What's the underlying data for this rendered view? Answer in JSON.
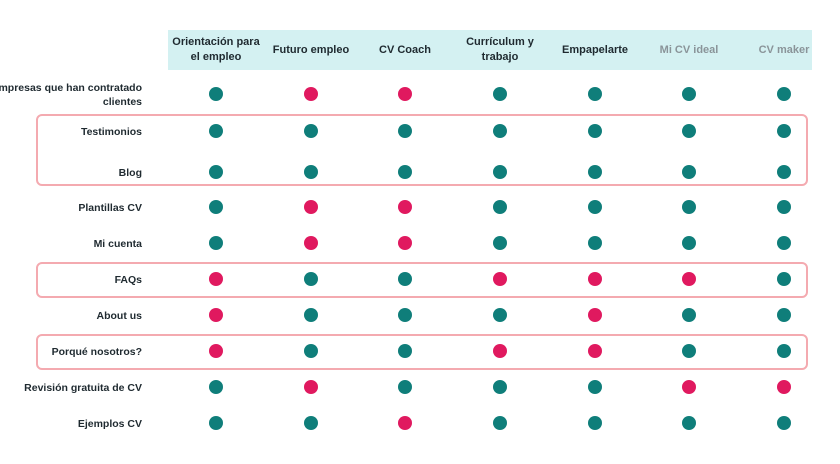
{
  "colors": {
    "yes": "#0f7e7a",
    "no": "#e0195f",
    "header_bg": "#d4f1f2",
    "highlight_border": "#f4aab0"
  },
  "columns": [
    "Orientación para el empleo",
    "Futuro empleo",
    "CV Coach",
    "Currículum y trabajo",
    "Empapelarte",
    "Mi CV ideal",
    "CV maker"
  ],
  "rows": [
    {
      "label": "Empresas que han contratado clientes",
      "values": [
        "yes",
        "no",
        "no",
        "yes",
        "yes",
        "yes",
        "yes"
      ]
    },
    {
      "label": "Testimonios",
      "values": [
        "yes",
        "yes",
        "yes",
        "yes",
        "yes",
        "yes",
        "yes"
      ]
    },
    {
      "label": "Blog",
      "values": [
        "yes",
        "yes",
        "yes",
        "yes",
        "yes",
        "yes",
        "yes"
      ]
    },
    {
      "label": "Plantillas CV",
      "values": [
        "yes",
        "no",
        "no",
        "yes",
        "yes",
        "yes",
        "yes"
      ]
    },
    {
      "label": "Mi cuenta",
      "values": [
        "yes",
        "no",
        "no",
        "yes",
        "yes",
        "yes",
        "yes"
      ]
    },
    {
      "label": "FAQs",
      "values": [
        "no",
        "yes",
        "yes",
        "no",
        "no",
        "no",
        "yes"
      ]
    },
    {
      "label": "About us",
      "values": [
        "no",
        "yes",
        "yes",
        "yes",
        "no",
        "yes",
        "yes"
      ]
    },
    {
      "label": "Porqué nosotros?",
      "values": [
        "no",
        "yes",
        "yes",
        "no",
        "no",
        "yes",
        "yes"
      ]
    },
    {
      "label": "Revisión gratuita de CV",
      "values": [
        "yes",
        "no",
        "yes",
        "yes",
        "yes",
        "no",
        "no"
      ]
    },
    {
      "label": "Ejemplos CV",
      "values": [
        "yes",
        "yes",
        "no",
        "yes",
        "yes",
        "yes",
        "yes"
      ]
    }
  ]
}
